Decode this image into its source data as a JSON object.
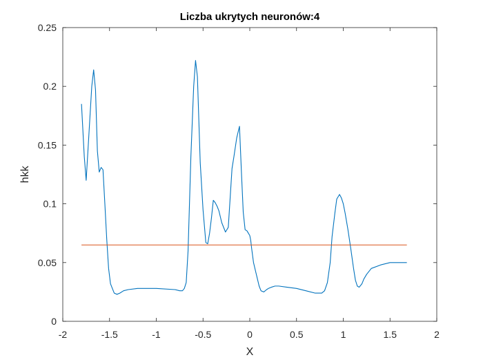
{
  "chart_data": {
    "type": "line",
    "title": "Liczba ukrytych neuronów:4",
    "xlabel": "X",
    "ylabel": "hkk",
    "xlim": [
      -2,
      2
    ],
    "ylim": [
      0,
      0.25
    ],
    "xticks": [
      -2,
      -1.5,
      -1,
      -0.5,
      0,
      0.5,
      1,
      1.5,
      2
    ],
    "xtick_labels": [
      "-2",
      "-1.5",
      "-1",
      "-0.5",
      "0",
      "0.5",
      "1",
      "1.5",
      "2"
    ],
    "yticks": [
      0,
      0.05,
      0.1,
      0.15,
      0.2,
      0.25
    ],
    "ytick_labels": [
      "0",
      "0.05",
      "0.1",
      "0.15",
      "0.2",
      "0.25"
    ],
    "grid": false,
    "box": true,
    "series": [
      {
        "color": "#0072BD",
        "x": [
          -1.8,
          -1.77,
          -1.75,
          -1.72,
          -1.69,
          -1.67,
          -1.65,
          -1.63,
          -1.61,
          -1.59,
          -1.57,
          -1.55,
          -1.53,
          -1.51,
          -1.49,
          -1.47,
          -1.45,
          -1.42,
          -1.39,
          -1.35,
          -1.3,
          -1.2,
          -1.0,
          -0.8,
          -0.75,
          -0.72,
          -0.7,
          -0.68,
          -0.66,
          -0.63,
          -0.6,
          -0.58,
          -0.56,
          -0.53,
          -0.5,
          -0.47,
          -0.45,
          -0.43,
          -0.41,
          -0.39,
          -0.37,
          -0.35,
          -0.33,
          -0.3,
          -0.26,
          -0.23,
          -0.21,
          -0.19,
          -0.17,
          -0.14,
          -0.11,
          -0.09,
          -0.07,
          -0.05,
          -0.03,
          -0.015,
          0.0,
          0.01,
          0.02,
          0.04,
          0.07,
          0.1,
          0.12,
          0.15,
          0.18,
          0.2,
          0.23,
          0.27,
          0.31,
          0.4,
          0.5,
          0.6,
          0.7,
          0.77,
          0.8,
          0.83,
          0.86,
          0.88,
          0.91,
          0.93,
          0.96,
          0.98,
          1.0,
          1.02,
          1.05,
          1.08,
          1.11,
          1.13,
          1.15,
          1.17,
          1.2,
          1.22,
          1.25,
          1.3,
          1.4,
          1.5,
          1.6,
          1.68
        ],
        "y": [
          0.185,
          0.14,
          0.12,
          0.16,
          0.2,
          0.214,
          0.197,
          0.145,
          0.127,
          0.131,
          0.129,
          0.1,
          0.07,
          0.045,
          0.032,
          0.028,
          0.024,
          0.023,
          0.024,
          0.026,
          0.027,
          0.028,
          0.028,
          0.027,
          0.026,
          0.026,
          0.028,
          0.033,
          0.06,
          0.14,
          0.2,
          0.222,
          0.208,
          0.135,
          0.095,
          0.067,
          0.066,
          0.075,
          0.088,
          0.103,
          0.101,
          0.098,
          0.094,
          0.084,
          0.076,
          0.08,
          0.105,
          0.13,
          0.14,
          0.156,
          0.166,
          0.128,
          0.093,
          0.078,
          0.077,
          0.075,
          0.073,
          0.069,
          0.062,
          0.05,
          0.04,
          0.03,
          0.026,
          0.025,
          0.027,
          0.028,
          0.029,
          0.03,
          0.03,
          0.029,
          0.028,
          0.026,
          0.024,
          0.024,
          0.026,
          0.033,
          0.05,
          0.072,
          0.092,
          0.104,
          0.108,
          0.105,
          0.1,
          0.092,
          0.078,
          0.062,
          0.045,
          0.035,
          0.03,
          0.029,
          0.032,
          0.036,
          0.04,
          0.045,
          0.048,
          0.05,
          0.05,
          0.05
        ]
      },
      {
        "color": "#D95319",
        "x": [
          -1.8,
          1.68
        ],
        "y": [
          0.065,
          0.065
        ]
      }
    ]
  }
}
